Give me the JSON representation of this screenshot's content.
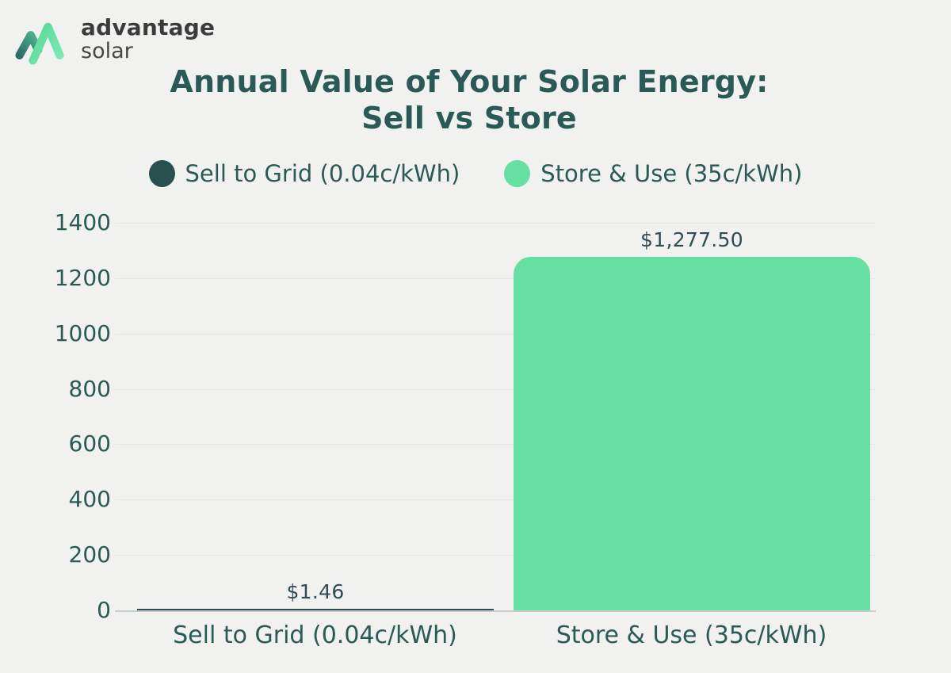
{
  "logo": {
    "brand_top": "advantage",
    "brand_bottom": "solar"
  },
  "title": {
    "line1": "Annual Value of Your Solar Energy:",
    "line2": "Sell vs Store"
  },
  "legend": [
    {
      "label": "Sell to Grid (0.04c/kWh)",
      "color": "#27504e"
    },
    {
      "label": "Store & Use (35c/kWh)",
      "color": "#66dfa3"
    }
  ],
  "chart_data": {
    "type": "bar",
    "title": "Annual Value of Your Solar Energy: Sell vs Store",
    "categories": [
      "Sell to Grid (0.04c/kWh)",
      "Store & Use (35c/kWh)"
    ],
    "values": [
      1.46,
      1277.5
    ],
    "value_labels": [
      "$1.46",
      "$1,277.50"
    ],
    "bar_colors": [
      "#27504e",
      "#66dfa3"
    ],
    "xlabel": "",
    "ylabel": "",
    "ylim": [
      0,
      1400
    ],
    "yticks": [
      0,
      200,
      400,
      600,
      800,
      1000,
      1200,
      1400
    ],
    "grid": true,
    "legend_position": "top",
    "legend_entries": [
      "Sell to Grid (0.04c/kWh)",
      "Store & Use (35c/kWh)"
    ]
  },
  "colors": {
    "background": "#f1f1ef",
    "title_text": "#2a5a56",
    "axis_text": "#2a5a56",
    "value_label_text": "#2f4b55",
    "gridline": "#e4e8e6",
    "baseline": "#c8cdcf",
    "bar_sell": "#27504e",
    "bar_store": "#66dfa3",
    "logo_text": "#3b3b3b"
  }
}
